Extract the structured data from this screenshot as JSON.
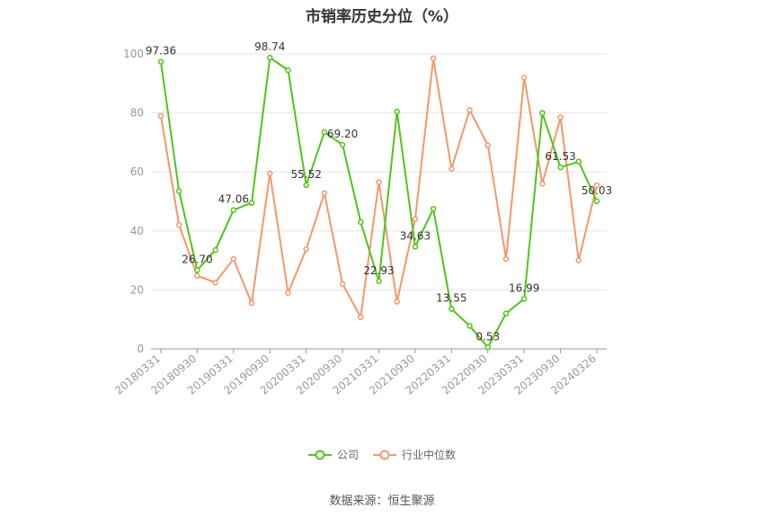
{
  "title": "市销率历史分位（%）",
  "source_label": "数据来源：恒生聚源",
  "chart_data": {
    "type": "line",
    "x": [
      "20180331",
      "20180630",
      "20180930",
      "20181231",
      "20190331",
      "20190630",
      "20190930",
      "20191231",
      "20200331",
      "20200630",
      "20200930",
      "20201231",
      "20210331",
      "20210630",
      "20210930",
      "20211231",
      "20220331",
      "20220630",
      "20220930",
      "20221231",
      "20230331",
      "20230630",
      "20230930",
      "20231231",
      "20240326"
    ],
    "xticks": [
      "20180331",
      "20180930",
      "20190331",
      "20190930",
      "20200331",
      "20200930",
      "20210331",
      "20210930",
      "20220331",
      "20220930",
      "20230331",
      "20230930",
      "20240326"
    ],
    "ylim": [
      0,
      100
    ],
    "yticks": [
      0,
      20,
      40,
      60,
      80,
      100
    ],
    "grid": true,
    "legend_position": "bottom",
    "series": [
      {
        "name": "公司",
        "color": "#52c41a",
        "values": [
          97.36,
          53.5,
          26.7,
          33.5,
          47.06,
          49.5,
          98.74,
          94.5,
          55.52,
          73.5,
          69.2,
          43.0,
          22.93,
          80.5,
          34.63,
          47.5,
          13.55,
          7.8,
          0.53,
          12.0,
          16.99,
          80.0,
          61.53,
          63.5,
          50.03
        ],
        "labels": {
          "0": "97.36",
          "2": "26.70",
          "4": "47.06",
          "6": "98.74",
          "8": "55.52",
          "10": "69.20",
          "12": "22.93",
          "14": "34.63",
          "16": "13.55",
          "18": "0.53",
          "20": "16.99",
          "22": "61.53",
          "24": "50.03"
        }
      },
      {
        "name": "行业中位数",
        "color": "#f4976c",
        "values": [
          79.0,
          42.0,
          24.8,
          22.5,
          30.5,
          15.5,
          59.5,
          19.0,
          33.8,
          52.8,
          22.0,
          10.8,
          56.5,
          16.0,
          44.0,
          98.5,
          61.0,
          81.0,
          69.0,
          30.5,
          92.0,
          56.0,
          78.5,
          30.0,
          55.5
        ]
      }
    ]
  }
}
